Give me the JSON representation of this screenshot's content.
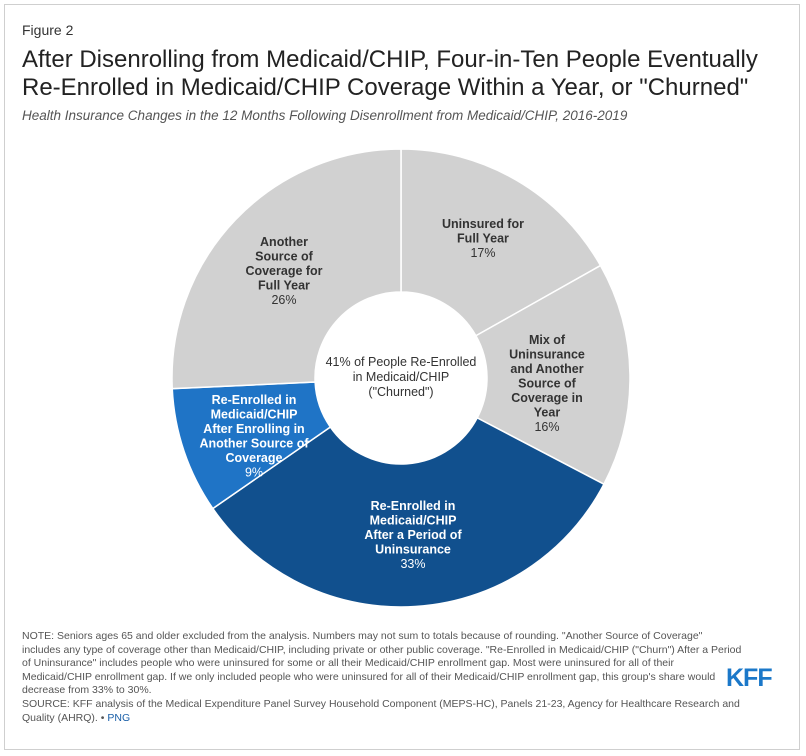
{
  "figure_label": "Figure 2",
  "title": "After Disenrolling from Medicaid/CHIP, Four-in-Ten People Eventually Re-Enrolled in Medicaid/CHIP Coverage Within a Year, or \"Churned\"",
  "subtitle": "Health Insurance Changes in the 12 Months Following Disenrollment from Medicaid/CHIP, 2016-2019",
  "chart_data": {
    "type": "pie",
    "donut": true,
    "center_label": [
      "41% of People Re-Enrolled",
      "in Medicaid/CHIP",
      "(\"Churned\")"
    ],
    "slices": [
      {
        "name": "Uninsured for Full Year",
        "lines": [
          "Uninsured for",
          "Full Year"
        ],
        "value": 17,
        "value_label": "17%",
        "color": "#d1d1d1",
        "text_color": "#333333"
      },
      {
        "name": "Mix of Uninsurance and Another Source of Coverage in Year",
        "lines": [
          "Mix of",
          "Uninsurance",
          "and Another",
          "Source of",
          "Coverage in",
          "Year"
        ],
        "value": 16,
        "value_label": "16%",
        "color": "#d1d1d1",
        "text_color": "#333333"
      },
      {
        "name": "Re-Enrolled in Medicaid/CHIP After a Period of Uninsurance",
        "lines": [
          "Re-Enrolled in",
          "Medicaid/CHIP",
          "After a Period of",
          "Uninsurance"
        ],
        "value": 33,
        "value_label": "33%",
        "color": "#11508e",
        "text_color": "#ffffff"
      },
      {
        "name": "Re-Enrolled in Medicaid/CHIP After Enrolling in Another Source of Coverage",
        "lines": [
          "Re-Enrolled in",
          "Medicaid/CHIP",
          "After Enrolling in",
          "Another Source of",
          "Coverage"
        ],
        "value": 9,
        "value_label": "9%",
        "color": "#1f74c6",
        "text_color": "#ffffff"
      },
      {
        "name": "Another Source of Coverage for Full Year",
        "lines": [
          "Another",
          "Source of",
          "Coverage for",
          "Full Year"
        ],
        "value": 26,
        "value_label": "26%",
        "color": "#d1d1d1",
        "text_color": "#333333"
      }
    ]
  },
  "note_text": "NOTE: Seniors ages 65 and older excluded from the analysis. Numbers may not sum to totals because of rounding. \"Another Source of Coverage\" includes any type of coverage other than Medicaid/CHIP, including private or other public coverage. \"Re-Enrolled in Medicaid/CHIP (\"Churn\") After a Period of Uninsurance\" includes people who were uninsured for some or all their Medicaid/CHIP enrollment gap. Most were uninsured for all of their Medicaid/CHIP enrollment gap. If we only included people who were uninsured for all of their Medicaid/CHIP enrollment gap, this group's share would decrease from 33% to 30%.",
  "source_text": "SOURCE: KFF analysis of the Medical Expenditure Panel Survey Household Component (MEPS-HC), Panels 21-23, Agency for Healthcare Research and Quality (AHRQ). •",
  "png_link": "PNG",
  "logo_text": "KFF"
}
